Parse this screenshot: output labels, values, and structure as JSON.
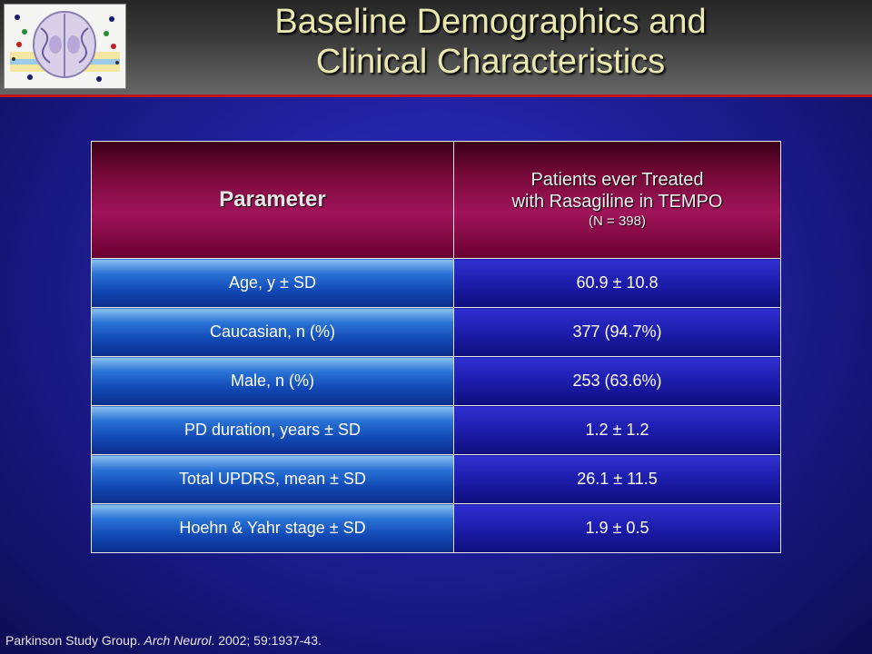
{
  "slide": {
    "title_line1": "Baseline Demographics and",
    "title_line2": "Clinical Characteristics",
    "logo_icon": "brain-scan-icon",
    "accent_color": "#c0141c"
  },
  "table": {
    "header_param": "Parameter",
    "header_patients_line1": "Patients ever Treated",
    "header_patients_line2": "with Rasagiline in TEMPO",
    "header_patients_n": "(N = 398)",
    "rows": [
      {
        "parameter": "Age, y ± SD",
        "value": "60.9 ± 10.8"
      },
      {
        "parameter": "Caucasian, n (%)",
        "value": "377 (94.7%)"
      },
      {
        "parameter": "Male, n (%)",
        "value": "253 (63.6%)"
      },
      {
        "parameter": "PD duration, years ± SD",
        "value": "1.2 ± 1.2"
      },
      {
        "parameter": "Total UPDRS, mean ± SD",
        "value": "26.1 ± 11.5"
      },
      {
        "parameter": "Hoehn & Yahr stage ± SD",
        "value": "1.9 ± 0.5"
      }
    ]
  },
  "citation": {
    "authors": "Parkinson Study Group.",
    "journal": "Arch Neurol",
    "details": ". 2002; 59:1937-43."
  }
}
